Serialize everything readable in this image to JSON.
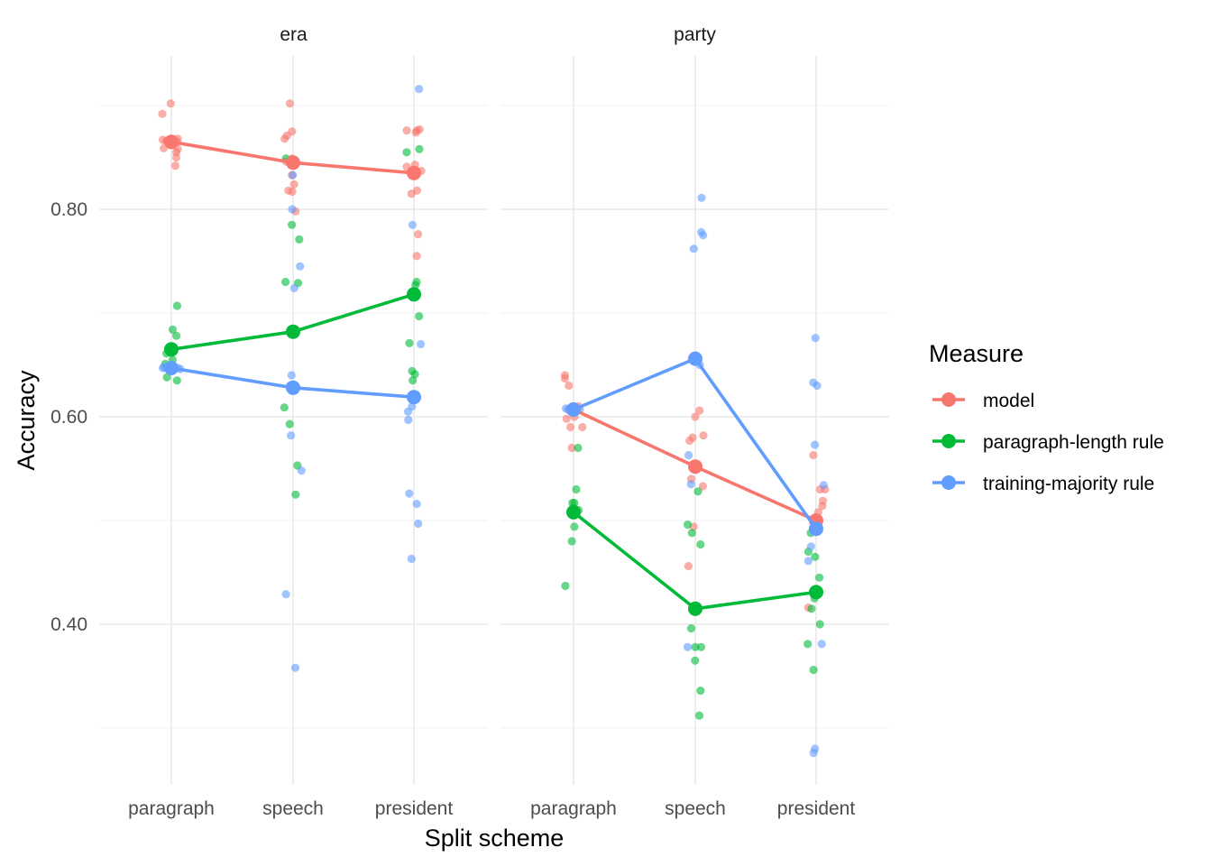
{
  "chart_data": {
    "type": "scatter",
    "xlabel": "Split scheme",
    "ylabel": "Accuracy",
    "categories": [
      "paragraph",
      "speech",
      "president"
    ],
    "yticks": [
      "0.40",
      "0.60",
      "0.80"
    ],
    "ylim": [
      0.27,
      0.94
    ],
    "legend": {
      "title": "Measure",
      "placement": "right",
      "entries": [
        "model",
        "paragraph-length rule",
        "training-majority rule"
      ]
    },
    "colors": {
      "model": "#F8766D",
      "paragraph-length rule": "#00BA38",
      "training-majority rule": "#619CFF"
    },
    "panels": [
      {
        "strip": "era",
        "means": {
          "model": [
            0.865,
            0.845,
            0.835
          ],
          "paragraph-length rule": [
            0.665,
            0.682,
            0.718
          ],
          "training-majority rule": [
            0.647,
            0.628,
            0.619
          ]
        },
        "points": {
          "model": [
            [
              0.892,
              0.902,
              0.868,
              0.867,
              0.865,
              0.866,
              0.859,
              0.858,
              0.855,
              0.85,
              0.842
            ],
            [
              0.902,
              0.875,
              0.871,
              0.868,
              0.849,
              0.846,
              0.833,
              0.824,
              0.818,
              0.817,
              0.798
            ],
            [
              0.877,
              0.876,
              0.876,
              0.874,
              0.843,
              0.841,
              0.837,
              0.818,
              0.815,
              0.776,
              0.755
            ]
          ],
          "paragraph-length rule": [
            [
              0.707,
              0.684,
              0.678,
              0.664,
              0.661,
              0.655,
              0.651,
              0.638,
              0.635
            ],
            [
              0.849,
              0.785,
              0.771,
              0.73,
              0.729,
              0.609,
              0.593,
              0.553,
              0.525
            ],
            [
              0.858,
              0.855,
              0.73,
              0.727,
              0.697,
              0.671,
              0.644,
              0.641,
              0.635
            ]
          ],
          "training-majority rule": [
            [
              0.648,
              0.647,
              0.647,
              0.647,
              0.646,
              0.646
            ],
            [
              0.833,
              0.8,
              0.745,
              0.724,
              0.64,
              0.63,
              0.582,
              0.548,
              0.429,
              0.358
            ],
            [
              0.916,
              0.785,
              0.67,
              0.61,
              0.605,
              0.597,
              0.526,
              0.516,
              0.497,
              0.463
            ]
          ]
        }
      },
      {
        "strip": "party",
        "means": {
          "model": [
            0.607,
            0.552,
            0.5
          ],
          "paragraph-length rule": [
            0.508,
            0.415,
            0.431
          ],
          "training-majority rule": [
            0.607,
            0.656,
            0.492
          ]
        },
        "points": {
          "model": [
            [
              0.64,
              0.637,
              0.63,
              0.61,
              0.6,
              0.598,
              0.59,
              0.59,
              0.57
            ],
            [
              0.606,
              0.6,
              0.582,
              0.58,
              0.577,
              0.54,
              0.533,
              0.494,
              0.456
            ],
            [
              0.563,
              0.53,
              0.53,
              0.519,
              0.514,
              0.508,
              0.5,
              0.495,
              0.416
            ]
          ],
          "paragraph-length rule": [
            [
              0.57,
              0.53,
              0.517,
              0.517,
              0.512,
              0.51,
              0.494,
              0.48,
              0.437
            ],
            [
              0.528,
              0.496,
              0.488,
              0.477,
              0.396,
              0.378,
              0.378,
              0.365,
              0.336,
              0.312
            ],
            [
              0.488,
              0.47,
              0.465,
              0.445,
              0.425,
              0.415,
              0.4,
              0.381,
              0.356
            ]
          ],
          "training-majority rule": [
            [
              0.608,
              0.607,
              0.607,
              0.606,
              0.606
            ],
            [
              0.811,
              0.778,
              0.775,
              0.762,
              0.65,
              0.563,
              0.535,
              0.378
            ],
            [
              0.676,
              0.633,
              0.63,
              0.573,
              0.534,
              0.475,
              0.461,
              0.381,
              0.28,
              0.276
            ]
          ]
        }
      }
    ]
  }
}
